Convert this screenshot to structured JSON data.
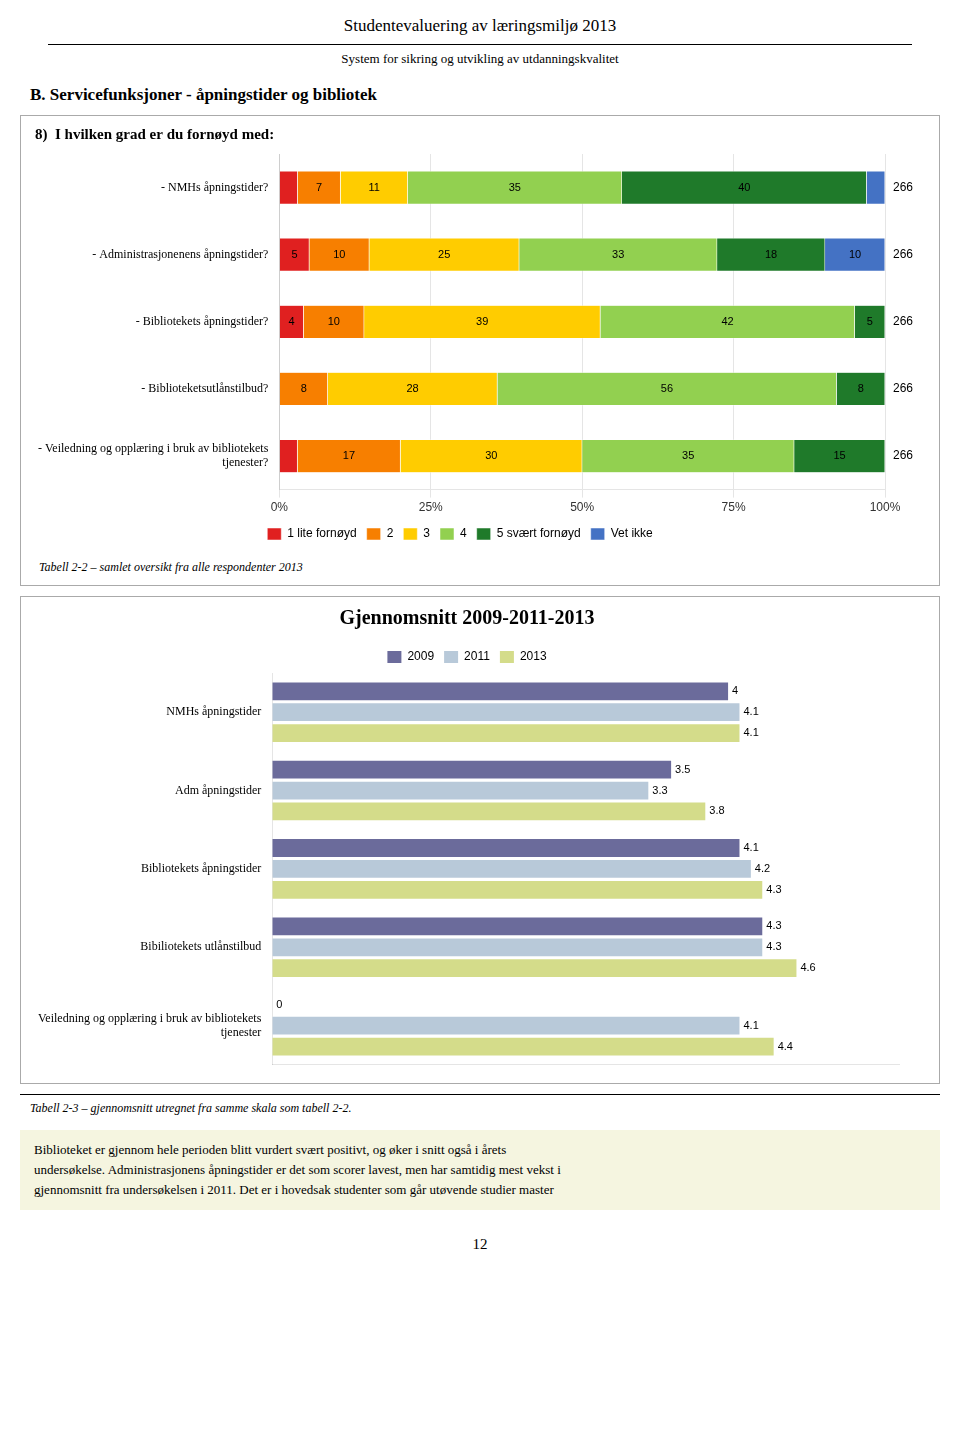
{
  "chart_data": [
    {
      "type": "bar",
      "title": "8)  I hvilken grad er du fornøyd med:",
      "annotations": [
        "Studentevaluering av læringsmiljø 2013",
        "System for sikring og utvikling av utdanningskvalitet",
        "B.  Servicefunksjoner - åpningstider og bibliotek",
        "Tabell 2-2 – samlet oversikt fra alle respondenter 2013"
      ],
      "orientation": "horizontal",
      "stacked": true,
      "categories": [
        "- NMHs åpningstider?",
        "- Administrasjonenens åpningstider?",
        "- Bibliotekets åpningstider?",
        "- Biblioteketsutlånstilbud?",
        "- Veiledning og opplæring i bruk av bibliotekets\ntjenester?"
      ],
      "series": [
        {
          "name": "1 lite fornøyd",
          "color": "#e02020",
          "values": [
            3.0303030303030303,
            4.9504950495049505,
            4,
            0,
            3
          ],
          "value_labels": [
            null,
            "5",
            "4",
            null,
            null
          ]
        },
        {
          "name": "2",
          "color": "#f77f00",
          "values": [
            7.070707070707071,
            9.900990099009901,
            10,
            8,
            17
          ],
          "value_labels": [
            "7",
            "10",
            "10",
            "8",
            "17"
          ]
        },
        {
          "name": "3",
          "color": "#ffcc00",
          "values": [
            11.11111111111111,
            24.752475247524753,
            39,
            28,
            30
          ],
          "value_labels": [
            "11",
            "25",
            "39",
            "28",
            "30"
          ]
        },
        {
          "name": "4",
          "color": "#92d050",
          "values": [
            35.35353535353536,
            32.67326732673267,
            42,
            56,
            35
          ],
          "value_labels": [
            "35",
            "33",
            "42",
            "56",
            "35"
          ]
        },
        {
          "name": "5 svært fornøyd",
          "color": "#1f7a2a",
          "values": [
            40.4040404040404,
            17.82178217821782,
            5,
            8,
            15
          ],
          "value_labels": [
            "40",
            "18",
            "5",
            "8",
            "15"
          ]
        },
        {
          "name": "Vet ikke",
          "color": "#4472c4",
          "values": [
            3.0303030303030303,
            9.900990099009901,
            0,
            0,
            0
          ],
          "value_labels": [
            null,
            "10",
            null,
            null,
            null
          ]
        }
      ],
      "row_totals": [
        266,
        266,
        266,
        266,
        266
      ],
      "xlim": [
        0,
        100
      ],
      "xticks": [
        {
          "value": 0,
          "label": "0%"
        },
        {
          "value": 25,
          "label": "25%"
        },
        {
          "value": 50,
          "label": "50%"
        },
        {
          "value": 75,
          "label": "75%"
        },
        {
          "value": 100,
          "label": "100%"
        }
      ],
      "grid": true,
      "legend": "bottom"
    },
    {
      "type": "bar",
      "title": "Gjennomsnitt 2009-2011-2013",
      "annotations": [
        "Tabell 2-3 – gjennomsnitt utregnet fra samme skala som tabell 2-2.",
        "Biblioteket er gjennom hele perioden blitt vurdert svært positivt, og øker i snitt også i årets\nundersøkelse. Administrasjonens åpningstider er det som scorer lavest, men har samtidig mest vekst i\ngjennomsnitt fra undersøkelsen i 2011. Det er i hovedsak studenter som går utøvende studier master",
        "12"
      ],
      "orientation": "horizontal",
      "categories": [
        "NMHs åpningstider",
        "Adm åpningstider",
        "Bibliotekets åpningstider",
        "Bibiliotekets utlånstilbud",
        "Veiledning og opplæring i bruk av bibliotekets\ntjenester"
      ],
      "series": [
        {
          "name": "2009",
          "color": "#6b6b9b",
          "values": [
            4.0,
            3.5,
            4.1,
            4.3,
            0.0
          ]
        },
        {
          "name": "2011",
          "color": "#b8c9d9",
          "values": [
            4.1,
            3.3,
            4.2,
            4.3,
            4.1
          ]
        },
        {
          "name": "2013",
          "color": "#d4dc8a",
          "values": [
            4.1,
            3.8,
            4.3,
            4.6,
            4.4
          ]
        }
      ],
      "xlim": [
        0,
        5.5
      ],
      "tick_labels": "y",
      "data_labels": true,
      "grid": false,
      "legend": "top"
    }
  ]
}
